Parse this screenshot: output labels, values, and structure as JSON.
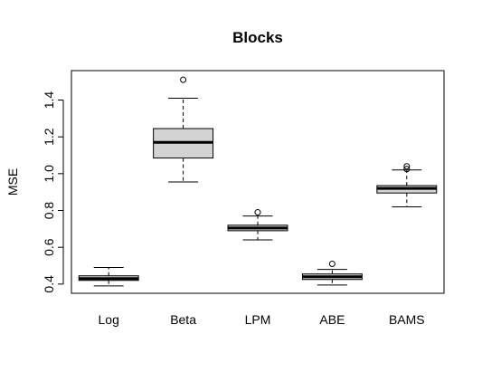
{
  "chart_data": {
    "type": "boxplot",
    "title": "Blocks",
    "xlabel": "",
    "ylabel": "MSE",
    "ylim": [
      0.35,
      1.56
    ],
    "yticks": [
      "0.4",
      "0.6",
      "0.8",
      "1.0",
      "1.2",
      "1.4"
    ],
    "box_fill": "#d3d3d3",
    "categories": [
      "Log",
      "Beta",
      "LPM",
      "ABE",
      "BAMS"
    ],
    "boxes": [
      {
        "label": "Log",
        "whisker_low": 0.39,
        "q1": 0.42,
        "median": 0.43,
        "q3": 0.445,
        "whisker_high": 0.49,
        "outliers": []
      },
      {
        "label": "Beta",
        "whisker_low": 0.955,
        "q1": 1.085,
        "median": 1.17,
        "q3": 1.245,
        "whisker_high": 1.41,
        "outliers": [
          1.51
        ]
      },
      {
        "label": "LPM",
        "whisker_low": 0.64,
        "q1": 0.69,
        "median": 0.705,
        "q3": 0.72,
        "whisker_high": 0.77,
        "outliers": [
          0.79
        ]
      },
      {
        "label": "ABE",
        "whisker_low": 0.395,
        "q1": 0.425,
        "median": 0.44,
        "q3": 0.455,
        "whisker_high": 0.48,
        "outliers": [
          0.51
        ]
      },
      {
        "label": "BAMS",
        "whisker_low": 0.82,
        "q1": 0.895,
        "median": 0.92,
        "q3": 0.935,
        "whisker_high": 1.02,
        "outliers": [
          1.025,
          1.04
        ]
      }
    ]
  }
}
